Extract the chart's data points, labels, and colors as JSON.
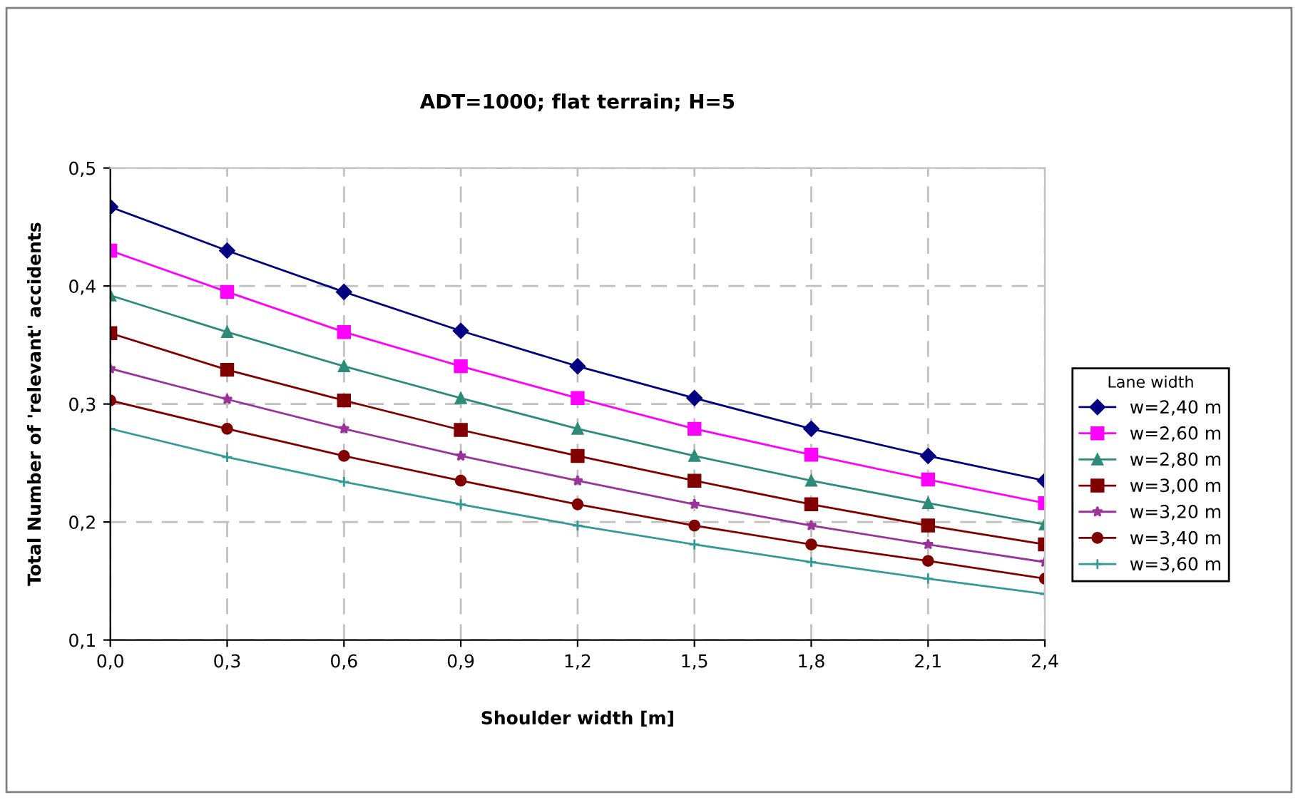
{
  "chart_data": {
    "type": "line",
    "title": "ADT=1000; flat terrain; H=5",
    "xlabel": "Shoulder width [m]",
    "ylabel": "Total Number of 'relevant' accidents",
    "legend_title": "Lane width",
    "x": [
      0,
      0.3,
      0.6,
      0.9,
      1.2,
      1.5,
      1.8,
      2.1,
      2.4
    ],
    "series": [
      {
        "name": "w=2,40 m",
        "color": "#000080",
        "marker": "diamond",
        "values": [
          0.467,
          0.43,
          0.395,
          0.362,
          0.332,
          0.305,
          0.279,
          0.256,
          0.235
        ]
      },
      {
        "name": "w=2,60 m",
        "color": "#ff00ff",
        "marker": "square",
        "values": [
          0.43,
          0.395,
          0.361,
          0.332,
          0.305,
          0.279,
          0.257,
          0.236,
          0.216
        ]
      },
      {
        "name": "w=2,80 m",
        "color": "#2e8b7a",
        "marker": "triangle",
        "values": [
          0.392,
          0.361,
          0.332,
          0.305,
          0.279,
          0.256,
          0.235,
          0.216,
          0.198
        ]
      },
      {
        "name": "w=3,00 m",
        "color": "#800000",
        "marker": "square",
        "values": [
          0.36,
          0.329,
          0.303,
          0.278,
          0.256,
          0.235,
          0.215,
          0.197,
          0.181
        ]
      },
      {
        "name": "w=3,20 m",
        "color": "#993399",
        "marker": "star",
        "values": [
          0.33,
          0.304,
          0.279,
          0.256,
          0.235,
          0.215,
          0.197,
          0.181,
          0.166
        ]
      },
      {
        "name": "w=3,40 m",
        "color": "#800000",
        "marker": "circle",
        "values": [
          0.303,
          0.279,
          0.256,
          0.235,
          0.215,
          0.197,
          0.181,
          0.167,
          0.152
        ]
      },
      {
        "name": "w=3,60 m",
        "color": "#339999",
        "marker": "cross",
        "values": [
          0.279,
          0.255,
          0.234,
          0.215,
          0.197,
          0.181,
          0.166,
          0.152,
          0.139
        ]
      }
    ],
    "xlim": [
      0,
      2.4
    ],
    "xticks": [
      {
        "value": 0,
        "label": "0,0"
      },
      {
        "value": 0.3,
        "label": "0,3"
      },
      {
        "value": 0.6,
        "label": "0,6"
      },
      {
        "value": 0.9,
        "label": "0,9"
      },
      {
        "value": 1.2,
        "label": "1,2"
      },
      {
        "value": 1.5,
        "label": "1,5"
      },
      {
        "value": 1.8,
        "label": "1,8"
      },
      {
        "value": 2.1,
        "label": "2,1"
      },
      {
        "value": 2.4,
        "label": "2,4"
      }
    ],
    "ylim": [
      0.1,
      0.5
    ],
    "yticks": [
      {
        "value": 0.1,
        "label": "0,1"
      },
      {
        "value": 0.2,
        "label": "0,2"
      },
      {
        "value": 0.3,
        "label": "0,3"
      },
      {
        "value": 0.4,
        "label": "0,4"
      },
      {
        "value": 0.5,
        "label": "0,5"
      }
    ],
    "grid": true,
    "legend": "right",
    "line_style": "solid"
  }
}
